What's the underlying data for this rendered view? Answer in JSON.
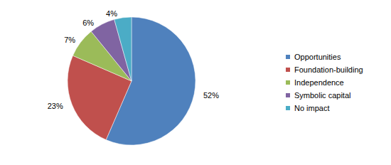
{
  "chart_data": {
    "type": "pie",
    "categories": [
      "Opportunities",
      "Foundation-building",
      "Independence",
      "Symbolic capital",
      "No impact"
    ],
    "values": [
      52,
      23,
      7,
      6,
      4
    ],
    "value_labels": [
      "52%",
      "23%",
      "7%",
      "6%",
      "4%"
    ],
    "colors": [
      "#4f81bd",
      "#c0504d",
      "#9bbb59",
      "#8064a2",
      "#4bacc6"
    ],
    "legend": "right",
    "data_labels": true
  }
}
